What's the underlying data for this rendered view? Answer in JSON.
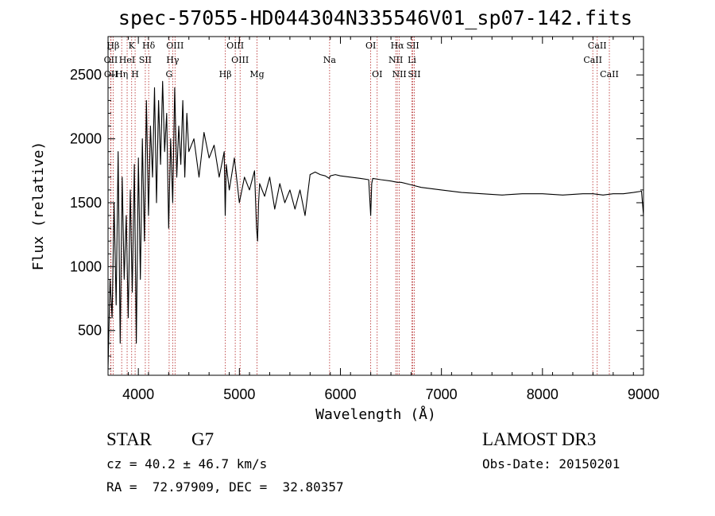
{
  "title": "spec-57055-HD044304N335546V01_sp07-142.fits",
  "info": {
    "class_label": "STAR",
    "subclass": "G7",
    "survey": "LAMOST DR3",
    "cz": "cz = 40.2 ± 46.7 km/s",
    "obs_date": "Obs-Date: 20150201",
    "coords": "RA =  72.97909, DEC =  32.80357"
  },
  "chart_data": {
    "type": "line",
    "title": "spec-57055-HD044304N335546V01_sp07-142.fits",
    "xlabel": "Wavelength (Å)",
    "ylabel": "Flux (relative)",
    "xlim": [
      3700,
      9000
    ],
    "ylim": [
      150,
      2800
    ],
    "xticks": [
      4000,
      5000,
      6000,
      7000,
      8000,
      9000
    ],
    "yticks": [
      500,
      1000,
      1500,
      2000,
      2500
    ],
    "line_color": "#000000",
    "marker_color": "#b22222",
    "series": [
      {
        "name": "flux",
        "x": [
          3700,
          3720,
          3740,
          3760,
          3780,
          3800,
          3820,
          3840,
          3860,
          3880,
          3900,
          3920,
          3940,
          3960,
          3980,
          4000,
          4020,
          4040,
          4060,
          4080,
          4100,
          4120,
          4140,
          4160,
          4180,
          4200,
          4220,
          4240,
          4260,
          4280,
          4300,
          4320,
          4340,
          4360,
          4380,
          4400,
          4420,
          4440,
          4460,
          4480,
          4500,
          4550,
          4600,
          4650,
          4700,
          4750,
          4800,
          4850,
          4860,
          4870,
          4900,
          4950,
          5000,
          5050,
          5100,
          5150,
          5170,
          5180,
          5190,
          5200,
          5250,
          5300,
          5350,
          5400,
          5450,
          5500,
          5550,
          5600,
          5650,
          5700,
          5750,
          5800,
          5850,
          5890,
          5900,
          5950,
          6000,
          6100,
          6200,
          6280,
          6300,
          6310,
          6320,
          6400,
          6500,
          6562,
          6600,
          6700,
          6800,
          6900,
          7000,
          7200,
          7400,
          7600,
          7800,
          8000,
          8200,
          8400,
          8500,
          8600,
          8700,
          8800,
          8900,
          8980,
          9000
        ],
        "y": [
          200,
          900,
          600,
          1500,
          700,
          1900,
          400,
          1700,
          900,
          1400,
          600,
          1600,
          800,
          1800,
          400,
          1850,
          900,
          2000,
          1200,
          2300,
          1400,
          2100,
          1700,
          2400,
          1500,
          2300,
          1800,
          2450,
          1900,
          2200,
          1300,
          2000,
          1500,
          2400,
          1700,
          2100,
          1800,
          2300,
          1700,
          2200,
          1900,
          2000,
          1700,
          2050,
          1850,
          1950,
          1700,
          1900,
          1400,
          1800,
          1600,
          1850,
          1500,
          1700,
          1600,
          1750,
          1300,
          1200,
          1500,
          1650,
          1550,
          1700,
          1450,
          1650,
          1500,
          1600,
          1450,
          1600,
          1400,
          1720,
          1740,
          1720,
          1710,
          1690,
          1710,
          1720,
          1710,
          1700,
          1690,
          1680,
          1400,
          1650,
          1690,
          1680,
          1670,
          1660,
          1660,
          1640,
          1620,
          1610,
          1600,
          1580,
          1570,
          1560,
          1570,
          1570,
          1560,
          1570,
          1570,
          1560,
          1570,
          1570,
          1580,
          1590,
          1400
        ]
      }
    ],
    "line_markers": [
      {
        "label": "Hβ",
        "wl": 3750,
        "row": 1
      },
      {
        "label": "OII",
        "wl": 3727,
        "row": 2
      },
      {
        "label": "OII",
        "wl": 3729,
        "row": 3
      },
      {
        "label": "K",
        "wl": 3934,
        "row": 1
      },
      {
        "label": "HeI",
        "wl": 3889,
        "row": 2
      },
      {
        "label": "Hη",
        "wl": 3835,
        "row": 3
      },
      {
        "label": "SII",
        "wl": 4069,
        "row": 2
      },
      {
        "label": "H",
        "wl": 3968,
        "row": 3
      },
      {
        "label": "Hδ",
        "wl": 4102,
        "row": 1
      },
      {
        "label": "OIII",
        "wl": 4363,
        "row": 1
      },
      {
        "label": "Hγ",
        "wl": 4340,
        "row": 2
      },
      {
        "label": "G",
        "wl": 4305,
        "row": 3
      },
      {
        "label": "OIII",
        "wl": 4959,
        "row": 1
      },
      {
        "label": "OIII",
        "wl": 5007,
        "row": 2
      },
      {
        "label": "Hβ",
        "wl": 4861,
        "row": 3
      },
      {
        "label": "Mg",
        "wl": 5175,
        "row": 3
      },
      {
        "label": "Na",
        "wl": 5893,
        "row": 2
      },
      {
        "label": "OI",
        "wl": 6300,
        "row": 1
      },
      {
        "label": "OI",
        "wl": 6364,
        "row": 3
      },
      {
        "label": "Hα",
        "wl": 6563,
        "row": 1
      },
      {
        "label": "NII",
        "wl": 6548,
        "row": 2
      },
      {
        "label": "NII",
        "wl": 6583,
        "row": 3
      },
      {
        "label": "SII",
        "wl": 6717,
        "row": 1
      },
      {
        "label": "Li",
        "wl": 6708,
        "row": 2
      },
      {
        "label": "SII",
        "wl": 6731,
        "row": 3
      },
      {
        "label": "CaII",
        "wl": 8542,
        "row": 1
      },
      {
        "label": "CaII",
        "wl": 8498,
        "row": 2
      },
      {
        "label": "CaII",
        "wl": 8662,
        "row": 3
      }
    ]
  }
}
